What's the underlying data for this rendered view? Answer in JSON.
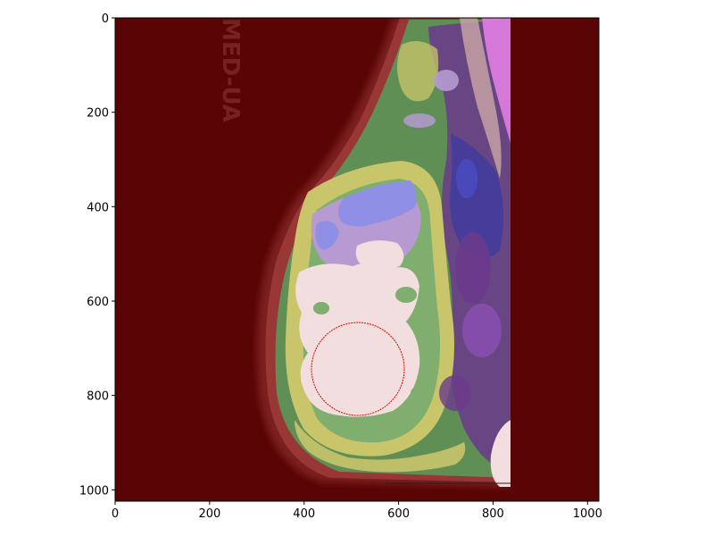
{
  "figure": {
    "image_extent": {
      "x": [
        0,
        1024
      ],
      "y": [
        1024,
        0
      ]
    },
    "xticks": [
      0,
      200,
      400,
      600,
      800,
      1000
    ],
    "yticks": [
      0,
      200,
      400,
      600,
      800,
      1000
    ],
    "xtick_labels": [
      "0",
      "200",
      "400",
      "600",
      "800",
      "1000"
    ],
    "ytick_labels": [
      "0",
      "200",
      "400",
      "600",
      "800",
      "1000"
    ],
    "colors": {
      "background_overlay": "#5a0505",
      "tissue_outer": "#b34848",
      "tissue_green": "#5f8f55",
      "tissue_yellow": "#c9c56b",
      "tissue_lavender": "#b69ad1",
      "tissue_blue": "#8f8fe6",
      "tissue_pale": "#f2dede",
      "tissue_purple": "#6a3a8c",
      "tissue_pink": "#e27de3",
      "marker_circle": "#e00000",
      "specimen_text": "#8a3b3b"
    },
    "marker_circle": {
      "center_x": 520,
      "center_y": 745,
      "radius": 98
    },
    "specimen_label": "MED-UA"
  }
}
